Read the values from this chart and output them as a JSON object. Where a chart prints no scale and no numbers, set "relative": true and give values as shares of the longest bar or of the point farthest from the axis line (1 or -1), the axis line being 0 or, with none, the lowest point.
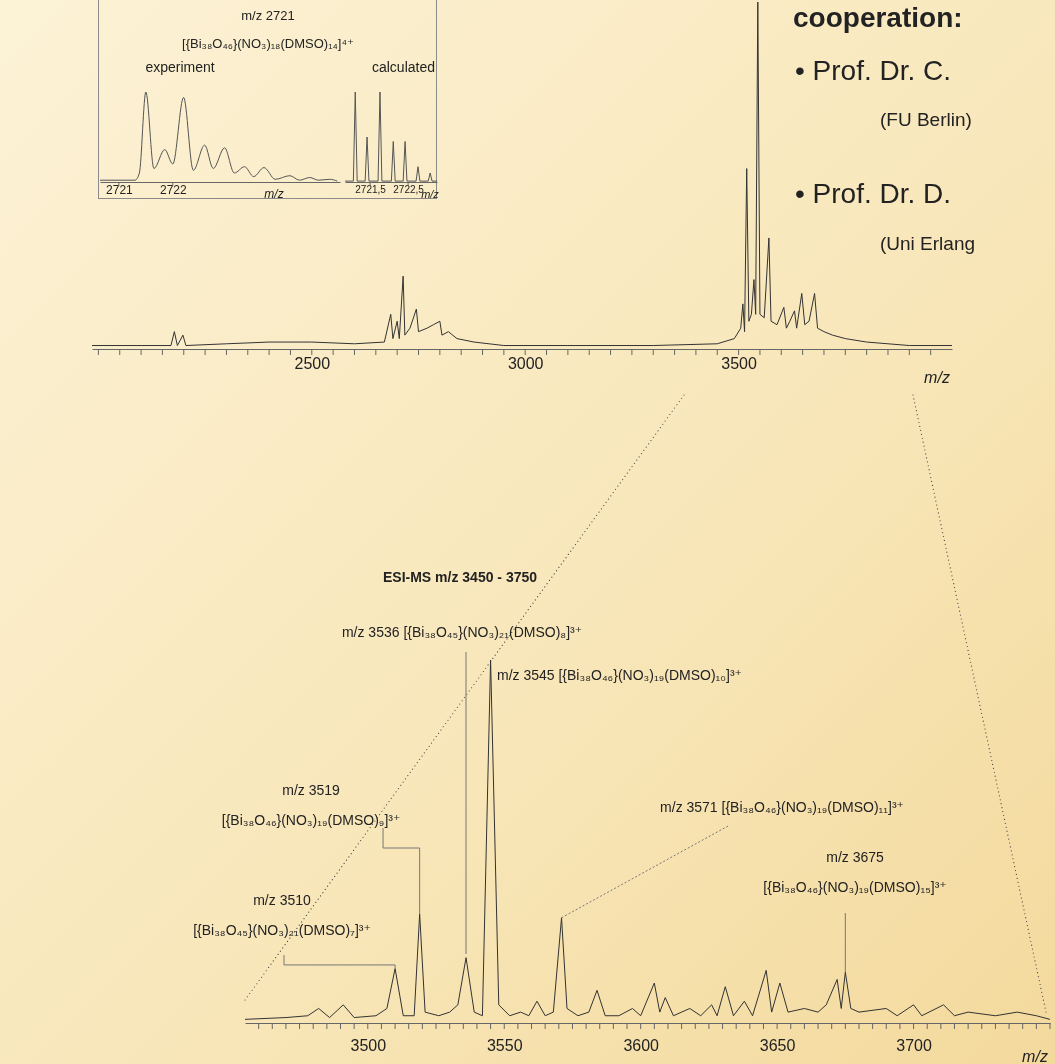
{
  "chart_data": [
    {
      "type": "line",
      "title": "experiment",
      "relative": true,
      "xlabel": "m/z",
      "xlim": [
        2720.65,
        2725.1
      ],
      "xticks": [
        2721,
        2722
      ],
      "annotations": [
        "m/z 2721",
        "[{Bi₃₈O₄₆}(NO₃)₁₈(DMSO)₁₄]⁴⁺"
      ],
      "series": [
        {
          "color": "#555555",
          "x": [
            2720.65,
            2721.3,
            2721.38,
            2721.5,
            2721.65,
            2721.85,
            2722.0,
            2722.2,
            2722.38,
            2722.59,
            2722.75,
            2722.96,
            2723.14,
            2723.33,
            2723.5,
            2723.69,
            2723.9,
            2724.17,
            2724.35,
            2724.54,
            2724.7,
            2724.91,
            2725.05
          ],
          "values": [
            0.02,
            0.02,
            0.1,
            1.0,
            0.15,
            0.36,
            0.2,
            0.94,
            0.13,
            0.41,
            0.15,
            0.38,
            0.1,
            0.17,
            0.06,
            0.16,
            0.03,
            0.07,
            0.02,
            0.05,
            0.02,
            0.03,
            0.01
          ]
        }
      ]
    },
    {
      "type": "line",
      "title": "calculated",
      "relative": true,
      "xlabel": "m/z",
      "xlim": [
        2720.84,
        2723.26
      ],
      "xticks": [
        {
          "value": 2721.5,
          "label": "2721,5"
        },
        {
          "value": 2722.5,
          "label": "2722,5"
        }
      ],
      "series": [
        {
          "color": "#555555",
          "x": [
            2720.84,
            2721.06,
            2721.11,
            2721.16,
            2721.37,
            2721.42,
            2721.47,
            2721.71,
            2721.76,
            2721.81,
            2722.06,
            2722.11,
            2722.16,
            2722.37,
            2722.42,
            2722.47,
            2722.71,
            2722.76,
            2722.81,
            2723.03,
            2723.08,
            2723.13,
            2723.26
          ],
          "values": [
            0.01,
            0.01,
            1.0,
            0.01,
            0.01,
            0.5,
            0.01,
            0.01,
            1.0,
            0.01,
            0.01,
            0.45,
            0.01,
            0.01,
            0.45,
            0.01,
            0.01,
            0.17,
            0.01,
            0.01,
            0.1,
            0.01,
            0.01
          ]
        }
      ]
    },
    {
      "type": "other",
      "annotations": [
        "cooperation:",
        "•  Prof. Dr. C.",
        "(FU Berlin)",
        "•  Prof. Dr. D.",
        "(Uni Erlang"
      ]
    },
    {
      "type": "line",
      "relative": true,
      "xlabel": "m/z",
      "xlim": [
        1985,
        4000
      ],
      "xticks": [
        {
          "value": 2000,
          "label": null
        },
        {
          "value": 2050,
          "label": null
        },
        {
          "value": 2100,
          "label": null
        },
        {
          "value": 2150,
          "label": null
        },
        {
          "value": 2200,
          "label": null
        },
        {
          "value": 2250,
          "label": null
        },
        {
          "value": 2300,
          "label": null
        },
        {
          "value": 2350,
          "label": null
        },
        {
          "value": 2400,
          "label": null
        },
        {
          "value": 2450,
          "label": null
        },
        2500,
        {
          "value": 2550,
          "label": null
        },
        {
          "value": 2600,
          "label": null
        },
        {
          "value": 2650,
          "label": null
        },
        {
          "value": 2700,
          "label": null
        },
        {
          "value": 2750,
          "label": null
        },
        {
          "value": 2800,
          "label": null
        },
        {
          "value": 2850,
          "label": null
        },
        {
          "value": 2900,
          "label": null
        },
        {
          "value": 2950,
          "label": null
        },
        3000,
        {
          "value": 3050,
          "label": null
        },
        {
          "value": 3100,
          "label": null
        },
        {
          "value": 3150,
          "label": null
        },
        {
          "value": 3200,
          "label": null
        },
        {
          "value": 3250,
          "label": null
        },
        {
          "value": 3300,
          "label": null
        },
        {
          "value": 3350,
          "label": null
        },
        {
          "value": 3400,
          "label": null
        },
        {
          "value": 3450,
          "label": null
        },
        3500,
        {
          "value": 3550,
          "label": null
        },
        {
          "value": 3600,
          "label": null
        },
        {
          "value": 3650,
          "label": null
        },
        {
          "value": 3700,
          "label": null
        },
        {
          "value": 3750,
          "label": null
        },
        {
          "value": 3800,
          "label": null
        },
        {
          "value": 3850,
          "label": null
        },
        {
          "value": 3900,
          "label": null
        },
        {
          "value": 3950,
          "label": null
        }
      ],
      "series": [
        {
          "color": "#333333",
          "x": [
            1985,
            2100,
            2170,
            2178,
            2185,
            2198,
            2205,
            2300,
            2400,
            2500,
            2600,
            2670,
            2685,
            2690,
            2700,
            2705,
            2714,
            2718,
            2730,
            2745,
            2750,
            2770,
            2785,
            2800,
            2805,
            2820,
            2840,
            2880,
            2950,
            3100,
            3300,
            3450,
            3490,
            3505,
            3510,
            3514,
            3519,
            3524,
            3530,
            3536,
            3540,
            3545,
            3550,
            3560,
            3571,
            3576,
            3590,
            3606,
            3612,
            3620,
            3631,
            3636,
            3648,
            3655,
            3665,
            3678,
            3685,
            3700,
            3720,
            3750,
            3800,
            3850,
            3900,
            4000
          ],
          "values": [
            0.01,
            0.01,
            0.01,
            0.05,
            0.01,
            0.04,
            0.01,
            0.015,
            0.02,
            0.02,
            0.015,
            0.02,
            0.1,
            0.03,
            0.08,
            0.03,
            0.21,
            0.04,
            0.06,
            0.115,
            0.05,
            0.06,
            0.07,
            0.08,
            0.04,
            0.05,
            0.03,
            0.02,
            0.01,
            0.01,
            0.01,
            0.015,
            0.03,
            0.06,
            0.13,
            0.05,
            0.52,
            0.08,
            0.1,
            0.2,
            0.1,
            1.0,
            0.1,
            0.09,
            0.32,
            0.08,
            0.07,
            0.12,
            0.06,
            0.08,
            0.11,
            0.06,
            0.16,
            0.07,
            0.08,
            0.16,
            0.06,
            0.05,
            0.04,
            0.03,
            0.02,
            0.015,
            0.01,
            0.01
          ]
        }
      ]
    },
    {
      "type": "line",
      "title": "ESI-MS m/z  3450 - 3750",
      "relative": true,
      "xlabel": "m/z",
      "xlim": [
        3455,
        3750
      ],
      "xticks": [
        {
          "value": 3460,
          "label": null
        },
        {
          "value": 3465,
          "label": null
        },
        {
          "value": 3470,
          "label": null
        },
        {
          "value": 3475,
          "label": null
        },
        {
          "value": 3480,
          "label": null
        },
        {
          "value": 3485,
          "label": null
        },
        {
          "value": 3490,
          "label": null
        },
        {
          "value": 3495,
          "label": null
        },
        3500,
        {
          "value": 3505,
          "label": null
        },
        {
          "value": 3510,
          "label": null
        },
        {
          "value": 3515,
          "label": null
        },
        {
          "value": 3520,
          "label": null
        },
        {
          "value": 3525,
          "label": null
        },
        {
          "value": 3530,
          "label": null
        },
        {
          "value": 3535,
          "label": null
        },
        {
          "value": 3540,
          "label": null
        },
        {
          "value": 3545,
          "label": null
        },
        3550,
        {
          "value": 3555,
          "label": null
        },
        {
          "value": 3560,
          "label": null
        },
        {
          "value": 3565,
          "label": null
        },
        {
          "value": 3570,
          "label": null
        },
        {
          "value": 3575,
          "label": null
        },
        {
          "value": 3580,
          "label": null
        },
        {
          "value": 3585,
          "label": null
        },
        {
          "value": 3590,
          "label": null
        },
        {
          "value": 3595,
          "label": null
        },
        3600,
        {
          "value": 3605,
          "label": null
        },
        {
          "value": 3610,
          "label": null
        },
        {
          "value": 3615,
          "label": null
        },
        {
          "value": 3620,
          "label": null
        },
        {
          "value": 3625,
          "label": null
        },
        {
          "value": 3630,
          "label": null
        },
        {
          "value": 3635,
          "label": null
        },
        {
          "value": 3640,
          "label": null
        },
        {
          "value": 3645,
          "label": null
        },
        3650,
        {
          "value": 3655,
          "label": null
        },
        {
          "value": 3660,
          "label": null
        },
        {
          "value": 3665,
          "label": null
        },
        {
          "value": 3670,
          "label": null
        },
        {
          "value": 3675,
          "label": null
        },
        {
          "value": 3680,
          "label": null
        },
        {
          "value": 3685,
          "label": null
        },
        {
          "value": 3690,
          "label": null
        },
        {
          "value": 3695,
          "label": null
        },
        3700,
        {
          "value": 3705,
          "label": null
        },
        {
          "value": 3710,
          "label": null
        },
        {
          "value": 3715,
          "label": null
        },
        {
          "value": 3720,
          "label": null
        },
        {
          "value": 3725,
          "label": null
        },
        {
          "value": 3730,
          "label": null
        },
        {
          "value": 3735,
          "label": null
        },
        {
          "value": 3740,
          "label": null
        },
        {
          "value": 3745,
          "label": null
        },
        {
          "value": 3750,
          "label": null
        }
      ],
      "annotations": [
        "m/z 3536 [{Bi₃₈O₄₅}(NO₃)₂₁(DMSO)₈]³⁺",
        {
          "text": "m/z 3545 [{Bi₃₈O₄₆}(NO₃)₁₉(DMSO)₁₀]³⁺",
          "x": 3545,
          "y": 1.0
        },
        {
          "text": "m/z 3519\n[{Bi₃₈O₄₆}(NO₃)₁₉(DMSO)₉]³⁺",
          "x": 3519,
          "y": 0.3
        },
        {
          "text": "m/z 3510\n[{Bi₃₈O₄₅}(NO₃)₂₁(DMSO)₇]³⁺",
          "x": 3510,
          "y": 0.15
        },
        {
          "text": "m/z 3571 [{Bi₃₈O₄₆}(NO₃)₁₉(DMSO)₁₁]³⁺",
          "x": 3571,
          "y": 0.29
        },
        {
          "text": "m/z 3675\n[{Bi₃₈O₄₆}(NO₃)₁₉(DMSO)₁₅]³⁺",
          "x": 3675,
          "y": 0.14
        }
      ],
      "series": [
        {
          "color": "#333333",
          "x": [
            3455,
            3470,
            3478,
            3482,
            3486,
            3491,
            3495,
            3503,
            3507,
            3510,
            3513,
            3517,
            3519,
            3521,
            3526,
            3530,
            3533,
            3536,
            3539,
            3542,
            3545,
            3548,
            3552,
            3556,
            3559,
            3562,
            3565,
            3568,
            3571,
            3573,
            3577,
            3581,
            3584,
            3587,
            3592,
            3597,
            3600,
            3605,
            3607,
            3609,
            3612,
            3618,
            3622,
            3626,
            3628,
            3631,
            3634,
            3638,
            3641,
            3646,
            3648,
            3651,
            3654,
            3660,
            3665,
            3668,
            3672,
            3673.5,
            3675,
            3677,
            3680,
            3690,
            3694,
            3700,
            3703,
            3711,
            3715,
            3720,
            3730,
            3738,
            3745,
            3750
          ],
          "values": [
            0.01,
            0.015,
            0.02,
            0.04,
            0.015,
            0.05,
            0.015,
            0.02,
            0.04,
            0.15,
            0.02,
            0.02,
            0.3,
            0.03,
            0.02,
            0.03,
            0.05,
            0.18,
            0.03,
            0.02,
            1.0,
            0.05,
            0.02,
            0.03,
            0.02,
            0.06,
            0.02,
            0.03,
            0.29,
            0.04,
            0.02,
            0.03,
            0.09,
            0.02,
            0.02,
            0.04,
            0.02,
            0.11,
            0.03,
            0.07,
            0.02,
            0.04,
            0.02,
            0.05,
            0.02,
            0.1,
            0.02,
            0.06,
            0.02,
            0.145,
            0.03,
            0.11,
            0.03,
            0.04,
            0.03,
            0.05,
            0.12,
            0.04,
            0.14,
            0.04,
            0.03,
            0.04,
            0.02,
            0.05,
            0.02,
            0.05,
            0.02,
            0.03,
            0.02,
            0.03,
            0.02,
            0.01
          ]
        }
      ]
    }
  ]
}
